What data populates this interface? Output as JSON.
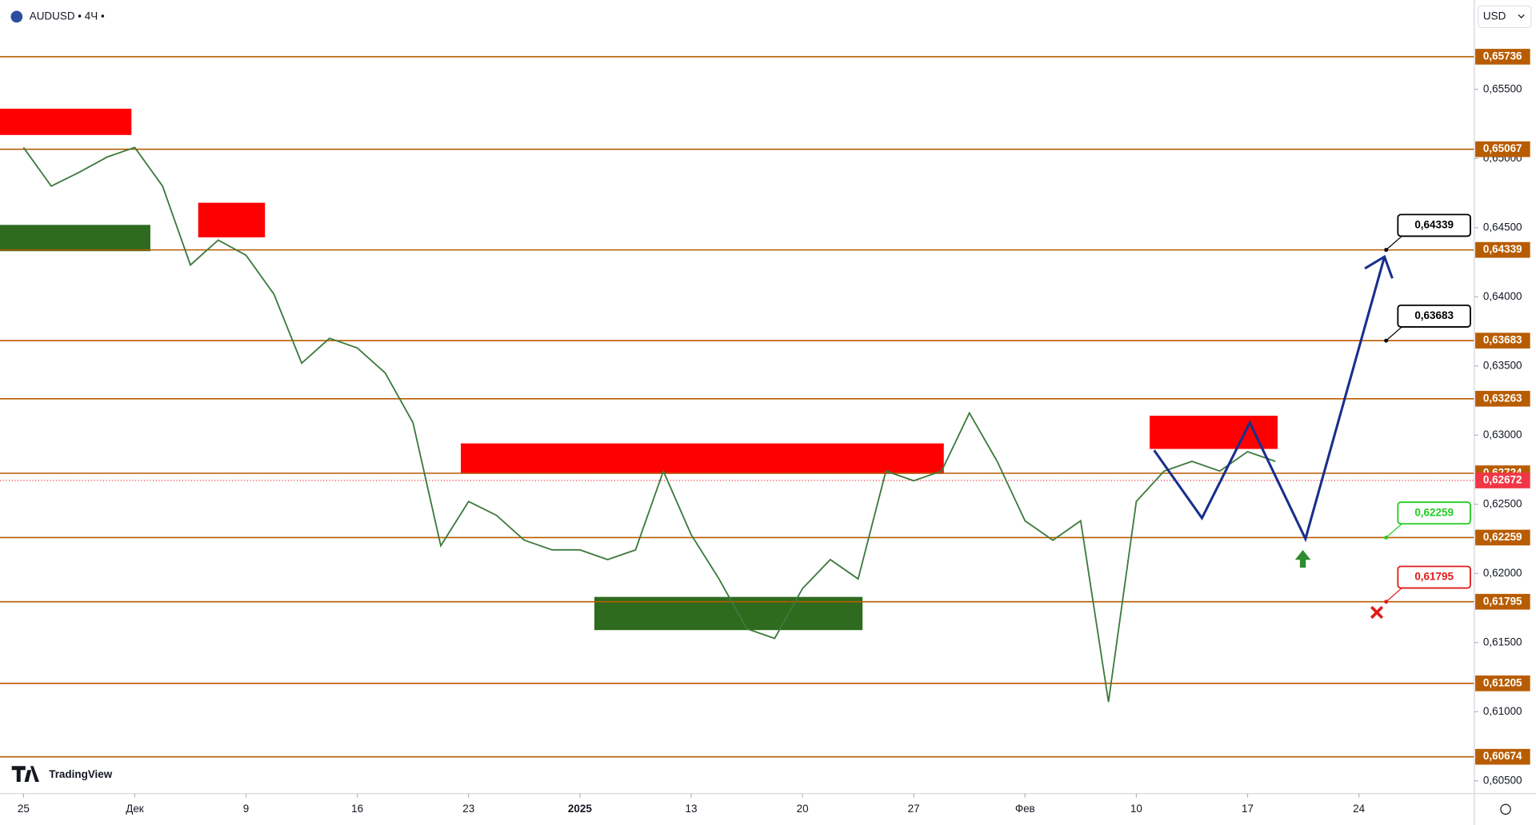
{
  "chart_data": {
    "type": "line",
    "title": "AUDUSD • 4Ч •",
    "currency": "USD",
    "watermark": "TradingView",
    "categories": [
      "25",
      "Дек",
      "9",
      "16",
      "23",
      "2025",
      "13",
      "20",
      "27",
      "Фев",
      "10",
      "17",
      "24"
    ],
    "xlim": [
      -0.211,
      13.037
    ],
    "ylim": [
      0.60408,
      0.66146
    ],
    "yticks": [
      {
        "value": 0.655,
        "label": "0,65500"
      },
      {
        "value": 0.65,
        "label": "0,65000"
      },
      {
        "value": 0.645,
        "label": "0,64500"
      },
      {
        "value": 0.64,
        "label": "0,64000"
      },
      {
        "value": 0.635,
        "label": "0,63500"
      },
      {
        "value": 0.63,
        "label": "0,63000"
      },
      {
        "value": 0.625,
        "label": "0,62500"
      },
      {
        "value": 0.62,
        "label": "0,62000"
      },
      {
        "value": 0.615,
        "label": "0,61500"
      },
      {
        "value": 0.61,
        "label": "0,61000"
      },
      {
        "value": 0.605,
        "label": "0,60500"
      }
    ],
    "x": [
      0,
      0.25,
      0.5,
      0.75,
      1,
      1.25,
      1.5,
      1.75,
      2,
      2.25,
      2.5,
      2.75,
      3,
      3.25,
      3.5,
      3.75,
      4,
      4.25,
      4.5,
      4.75,
      5,
      5.25,
      5.5,
      5.75,
      6,
      6.25,
      6.5,
      6.75,
      7,
      7.25,
      7.5,
      7.75,
      8,
      8.25,
      8.5,
      8.75,
      9,
      9.25,
      9.5,
      9.75,
      10,
      10.25,
      10.5,
      10.75,
      11,
      11.25
    ],
    "values": [
      0.6508,
      0.648,
      0.649,
      0.6501,
      0.6508,
      0.648,
      0.6423,
      0.6441,
      0.643,
      0.6402,
      0.6352,
      0.637,
      0.6363,
      0.6345,
      0.6309,
      0.622,
      0.6252,
      0.6242,
      0.6224,
      0.6217,
      0.6217,
      0.621,
      0.6217,
      0.6274,
      0.6228,
      0.6196,
      0.616,
      0.6153,
      0.6189,
      0.621,
      0.6196,
      0.6274,
      0.6267,
      0.6274,
      0.6316,
      0.6281,
      0.6238,
      0.6224,
      0.6238,
      0.6107,
      0.6252,
      0.6274,
      0.6281,
      0.6274,
      0.6288,
      0.6281
    ],
    "color": "#3d7a3d",
    "levels": [
      {
        "value": 0.65736,
        "label": "0,65736"
      },
      {
        "value": 0.65067,
        "label": "0,65067"
      },
      {
        "value": 0.64339,
        "label": "0,64339"
      },
      {
        "value": 0.63683,
        "label": "0,63683"
      },
      {
        "value": 0.63263,
        "label": "0,63263"
      },
      {
        "value": 0.62724,
        "label": "0,62724"
      },
      {
        "value": 0.62259,
        "label": "0,62259"
      },
      {
        "value": 0.61795,
        "label": "0,61795"
      },
      {
        "value": 0.61205,
        "label": "0,61205"
      },
      {
        "value": 0.60674,
        "label": "0,60674"
      }
    ],
    "level_color": "#b85c00",
    "current_price": {
      "value": 0.62672,
      "label": "0,62672",
      "color": "#f23645"
    },
    "zones": [
      {
        "x": [
          -0.211,
          0.97
        ],
        "range": [
          0.6517,
          0.6536
        ],
        "color": "#ff0000"
      },
      {
        "x": [
          1.57,
          2.17
        ],
        "range": [
          0.6443,
          0.6468
        ],
        "color": "#ff0000"
      },
      {
        "x": [
          3.93,
          8.27
        ],
        "range": [
          0.6272,
          0.6294
        ],
        "color": "#ff0000"
      },
      {
        "x": [
          10.12,
          11.27
        ],
        "range": [
          0.629,
          0.6314
        ],
        "color": "#ff0000"
      },
      {
        "x": [
          -0.211,
          1.14
        ],
        "range": [
          0.6433,
          0.6452
        ],
        "color": "#2e6b1f"
      },
      {
        "x": [
          5.13,
          7.54
        ],
        "range": [
          0.6159,
          0.6183
        ],
        "color": "#2e6b1f"
      }
    ],
    "projection": {
      "x": [
        10.16,
        10.59,
        11.02,
        11.52,
        12.23
      ],
      "values": [
        0.6289,
        0.624,
        0.6309,
        0.6225,
        0.6429
      ],
      "color": "#1a2e8c"
    },
    "callouts": [
      {
        "value": 0.64339,
        "label": "0,64339",
        "color": "#000000"
      },
      {
        "value": 0.63683,
        "label": "0,63683",
        "color": "#000000"
      },
      {
        "value": 0.62259,
        "label": "0,62259",
        "color": "#22cc22"
      },
      {
        "value": 0.61795,
        "label": "0,61795",
        "color": "#e01b1b"
      }
    ]
  }
}
